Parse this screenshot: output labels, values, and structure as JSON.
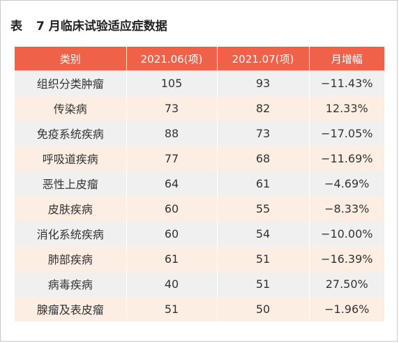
{
  "title": {
    "prefix": "表",
    "text": "7 月临床试验适应症数据"
  },
  "table": {
    "headers": [
      "类别",
      "2021.06(项)",
      "2021.07(项)",
      "月增幅"
    ],
    "rows": [
      [
        "组织分类肿瘤",
        "105",
        "93",
        "−11.43%"
      ],
      [
        "传染病",
        "73",
        "82",
        "12.33%"
      ],
      [
        "免疫系统疾病",
        "88",
        "73",
        "−17.05%"
      ],
      [
        "呼吸道疾病",
        "77",
        "68",
        "−11.69%"
      ],
      [
        "恶性上皮瘤",
        "64",
        "61",
        "−4.69%"
      ],
      [
        "皮肤疾病",
        "60",
        "55",
        "−8.33%"
      ],
      [
        "消化系统疾病",
        "60",
        "54",
        "−10.00%"
      ],
      [
        "肺部疾病",
        "61",
        "51",
        "−16.39%"
      ],
      [
        "病毒疾病",
        "40",
        "51",
        "27.50%"
      ],
      [
        "腺瘤及表皮瘤",
        "51",
        "50",
        "−1.96%"
      ]
    ]
  },
  "colors": {
    "header_bg": "#f0614a",
    "row_odd_bg": "#f0f0f0",
    "row_even_bg": "#fdeee4"
  }
}
